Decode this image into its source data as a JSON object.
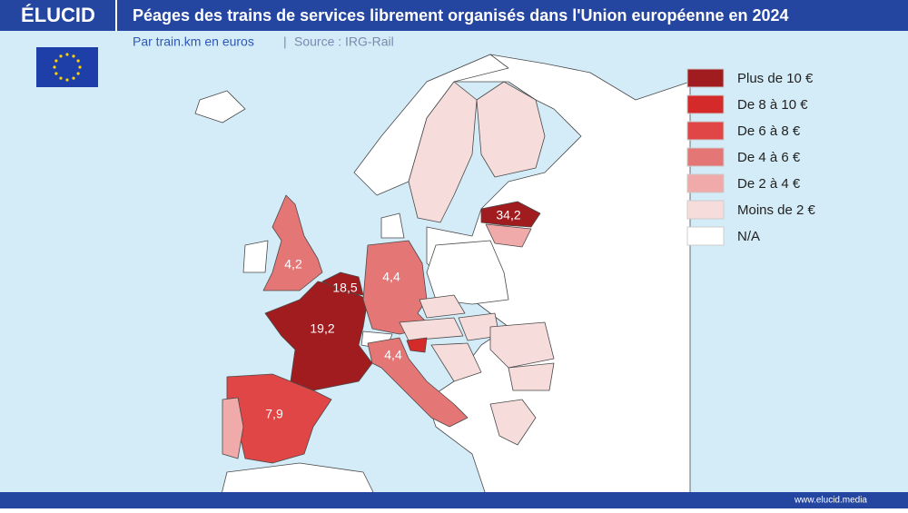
{
  "header": {
    "brand": "ÉLUCID",
    "title": "Péages des trains de services librement organisés dans l'Union européenne en 2024",
    "subtitle": "Par train.km en euros",
    "source": "Source : IRG-Rail"
  },
  "legend": [
    {
      "label": "Plus de 10 €",
      "color": "#a11c1f"
    },
    {
      "label": "De 8 à 10 €",
      "color": "#d42a2a"
    },
    {
      "label": "De 6 à 8 €",
      "color": "#e04646"
    },
    {
      "label": "De 4 à 6 €",
      "color": "#e57676"
    },
    {
      "label": "De 2 à 4 €",
      "color": "#f0aaaa"
    },
    {
      "label": "Moins de 2 €",
      "color": "#f7dcdc"
    },
    {
      "label": "N/A",
      "color": "#ffffff"
    }
  ],
  "labels": [
    {
      "text": "34,2"
    },
    {
      "text": "18,5"
    },
    {
      "text": "19,2"
    },
    {
      "text": "4,2"
    },
    {
      "text": "4,4"
    },
    {
      "text": "4,4"
    },
    {
      "text": "7,9"
    }
  ],
  "footer": "www.elucid.media"
}
